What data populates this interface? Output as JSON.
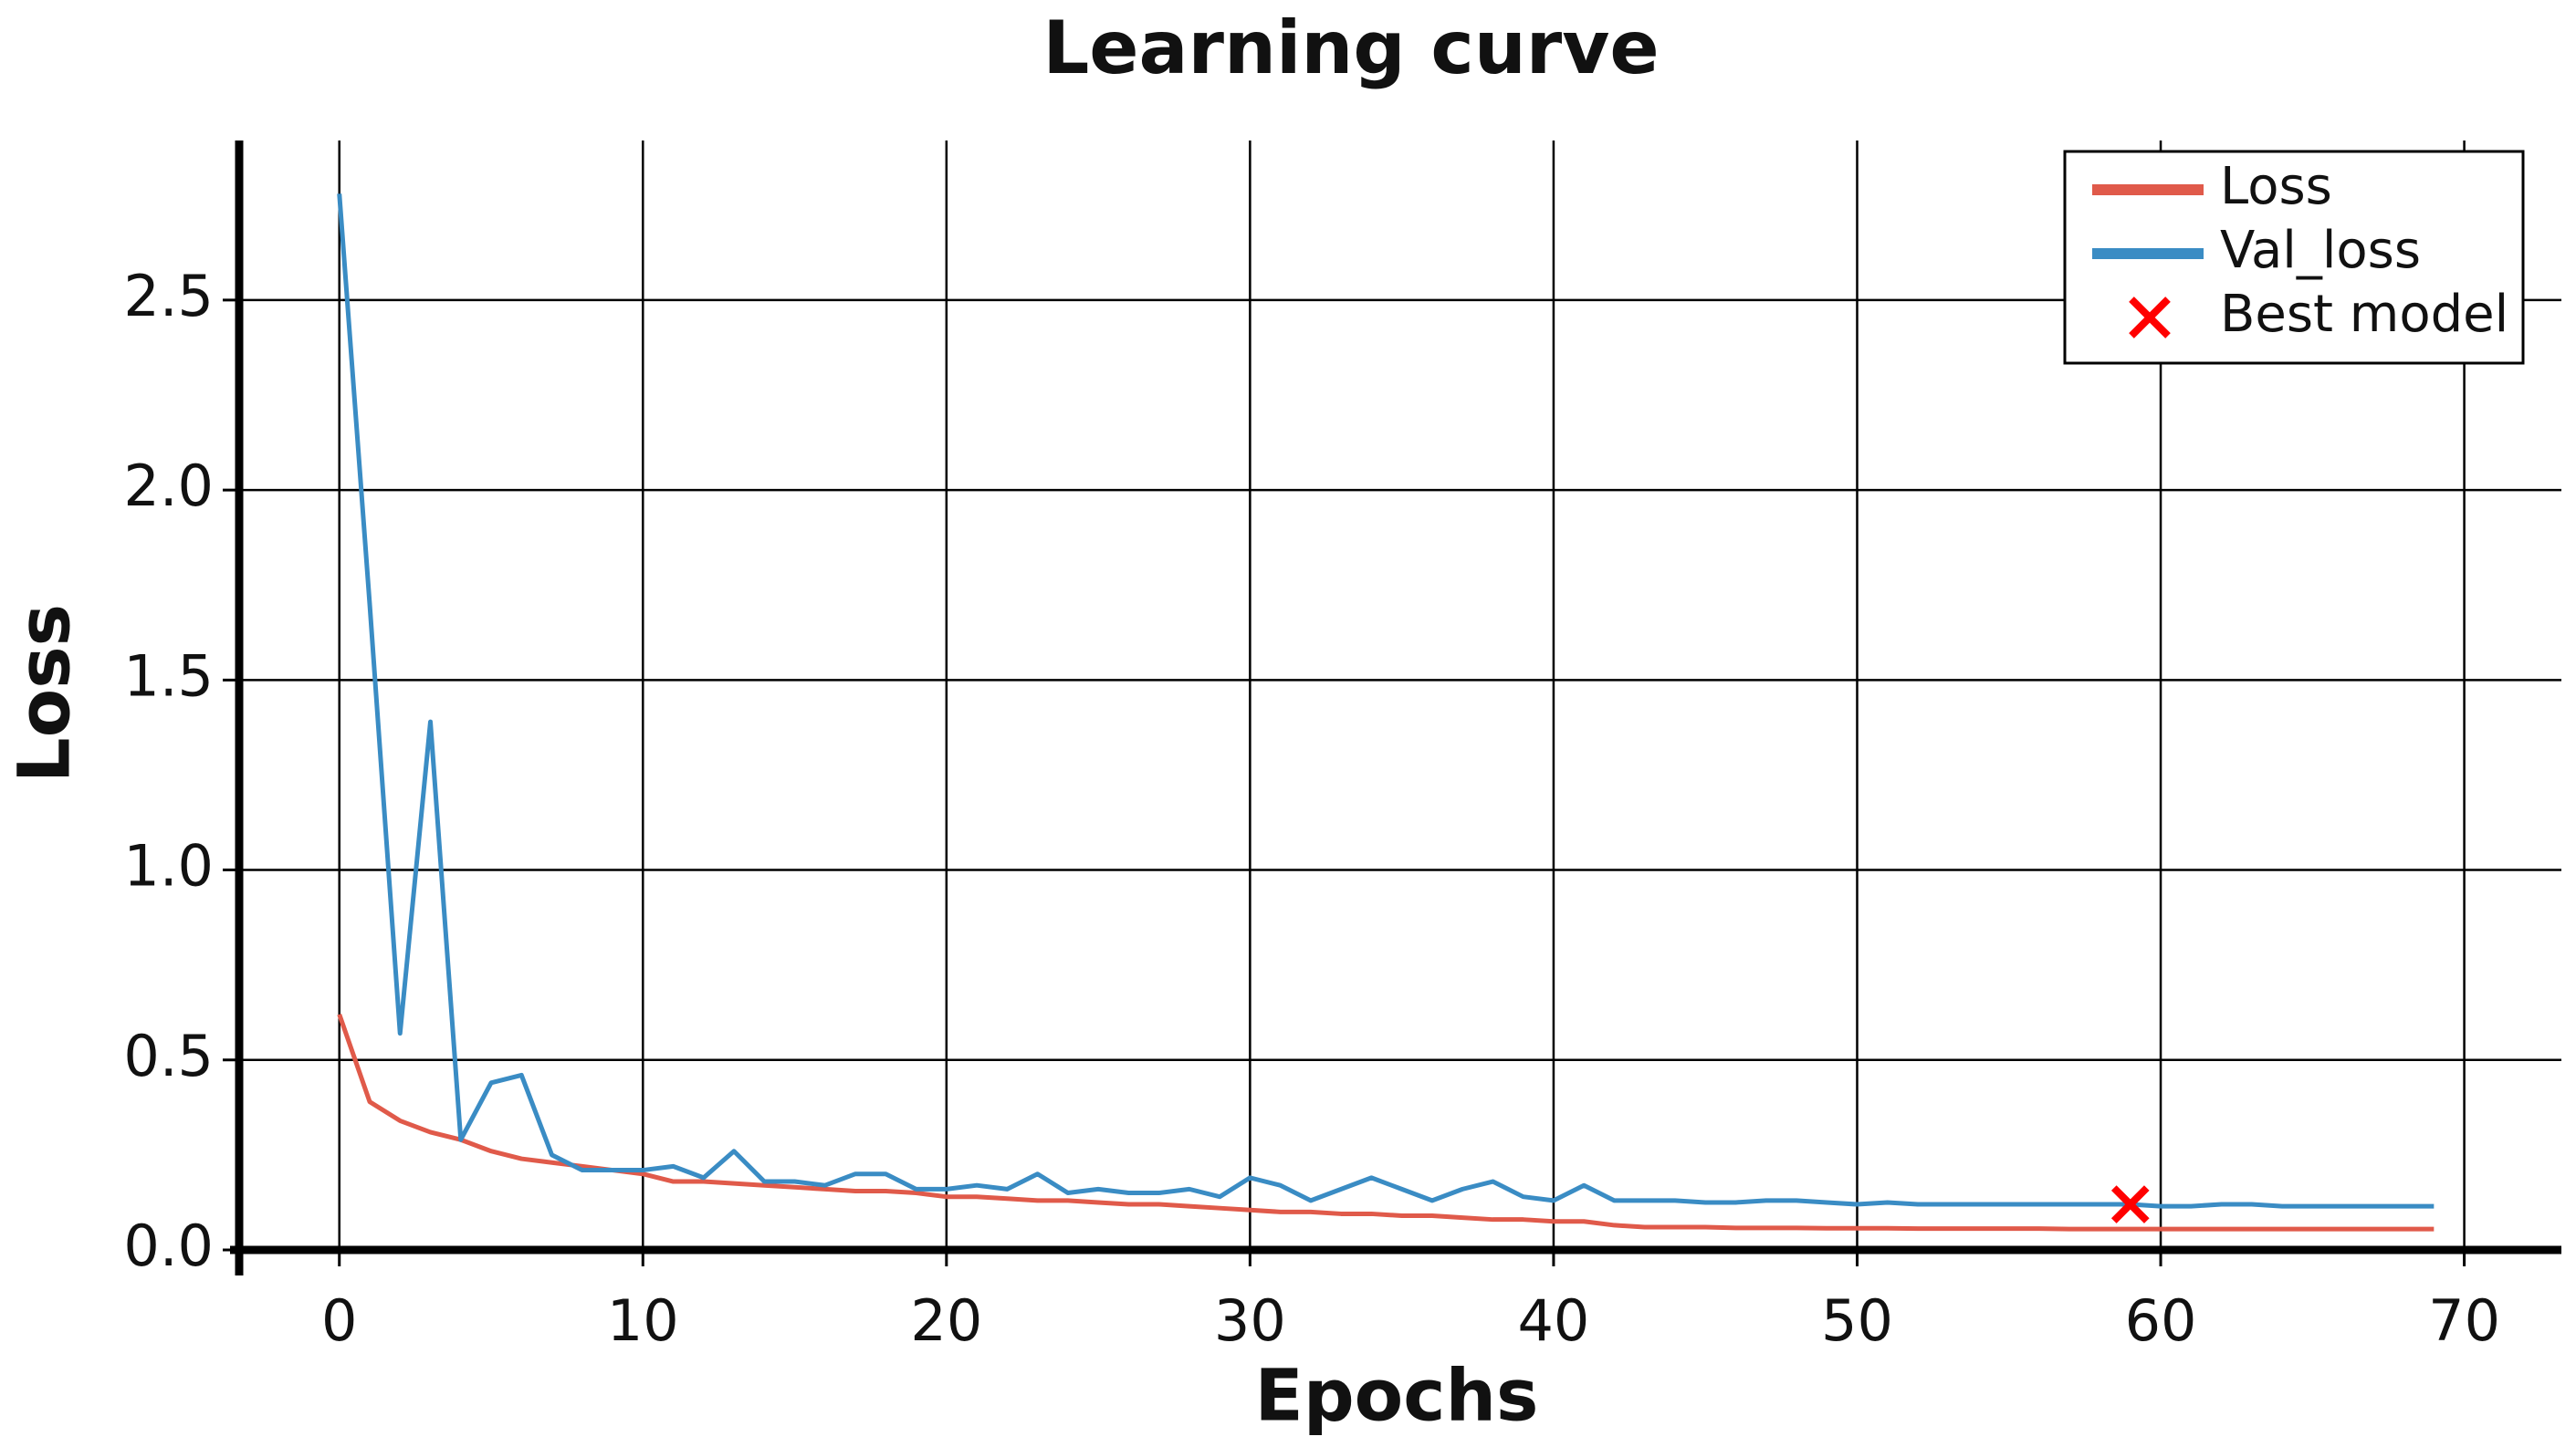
{
  "chart_data": {
    "type": "line",
    "title": "Learning curve",
    "x_label": "Epochs",
    "y_label": "Loss",
    "x": [
      0,
      1,
      2,
      3,
      4,
      5,
      6,
      7,
      8,
      9,
      10,
      11,
      12,
      13,
      14,
      15,
      16,
      17,
      18,
      19,
      20,
      21,
      22,
      23,
      24,
      25,
      26,
      27,
      28,
      29,
      30,
      31,
      32,
      33,
      34,
      35,
      36,
      37,
      38,
      39,
      40,
      41,
      42,
      43,
      44,
      45,
      46,
      47,
      48,
      49,
      50,
      51,
      52,
      53,
      54,
      55,
      56,
      57,
      58,
      59,
      60,
      61,
      62,
      63,
      64,
      65,
      66,
      67,
      68,
      69
    ],
    "series": [
      {
        "name": "Loss",
        "color": "#e05a4a",
        "values": [
          0.62,
          0.39,
          0.34,
          0.31,
          0.29,
          0.26,
          0.24,
          0.23,
          0.22,
          0.21,
          0.2,
          0.18,
          0.18,
          0.175,
          0.17,
          0.165,
          0.16,
          0.155,
          0.155,
          0.15,
          0.14,
          0.14,
          0.135,
          0.13,
          0.13,
          0.125,
          0.12,
          0.12,
          0.115,
          0.11,
          0.105,
          0.1,
          0.1,
          0.095,
          0.095,
          0.09,
          0.09,
          0.085,
          0.08,
          0.08,
          0.075,
          0.075,
          0.065,
          0.06,
          0.06,
          0.06,
          0.058,
          0.058,
          0.058,
          0.057,
          0.057,
          0.057,
          0.056,
          0.056,
          0.056,
          0.056,
          0.056,
          0.055,
          0.055,
          0.055,
          0.055,
          0.055,
          0.055,
          0.055,
          0.055,
          0.055,
          0.055,
          0.055,
          0.055,
          0.055
        ]
      },
      {
        "name": "Val_loss",
        "color": "#3a8cc4",
        "values": [
          2.78,
          1.7,
          0.57,
          1.39,
          0.29,
          0.44,
          0.46,
          0.25,
          0.21,
          0.21,
          0.21,
          0.22,
          0.19,
          0.26,
          0.18,
          0.18,
          0.17,
          0.2,
          0.2,
          0.16,
          0.16,
          0.17,
          0.16,
          0.2,
          0.15,
          0.16,
          0.15,
          0.15,
          0.16,
          0.14,
          0.19,
          0.17,
          0.13,
          0.16,
          0.19,
          0.16,
          0.13,
          0.16,
          0.18,
          0.14,
          0.13,
          0.17,
          0.13,
          0.13,
          0.13,
          0.125,
          0.125,
          0.13,
          0.13,
          0.125,
          0.12,
          0.125,
          0.12,
          0.12,
          0.12,
          0.12,
          0.12,
          0.12,
          0.12,
          0.12,
          0.115,
          0.115,
          0.12,
          0.12,
          0.115,
          0.115,
          0.115,
          0.115,
          0.115,
          0.115
        ]
      }
    ],
    "best_model": {
      "name": "Best model",
      "color": "#ff0000",
      "x": 59,
      "y": 0.12
    },
    "xlim": [
      -3.3,
      73.2
    ],
    "ylim": [
      0,
      2.92
    ],
    "xticks": [
      0,
      10,
      20,
      30,
      40,
      50,
      60,
      70
    ],
    "yticks": [
      {
        "value": 0,
        "label": "0.0"
      },
      {
        "value": 0.5,
        "label": "0.5"
      },
      {
        "value": 1,
        "label": "1.0"
      },
      {
        "value": 1.5,
        "label": "1.5"
      },
      {
        "value": 2,
        "label": "2.0"
      },
      {
        "value": 2.5,
        "label": "2.5"
      }
    ],
    "grid": true,
    "legend": "upper right"
  }
}
